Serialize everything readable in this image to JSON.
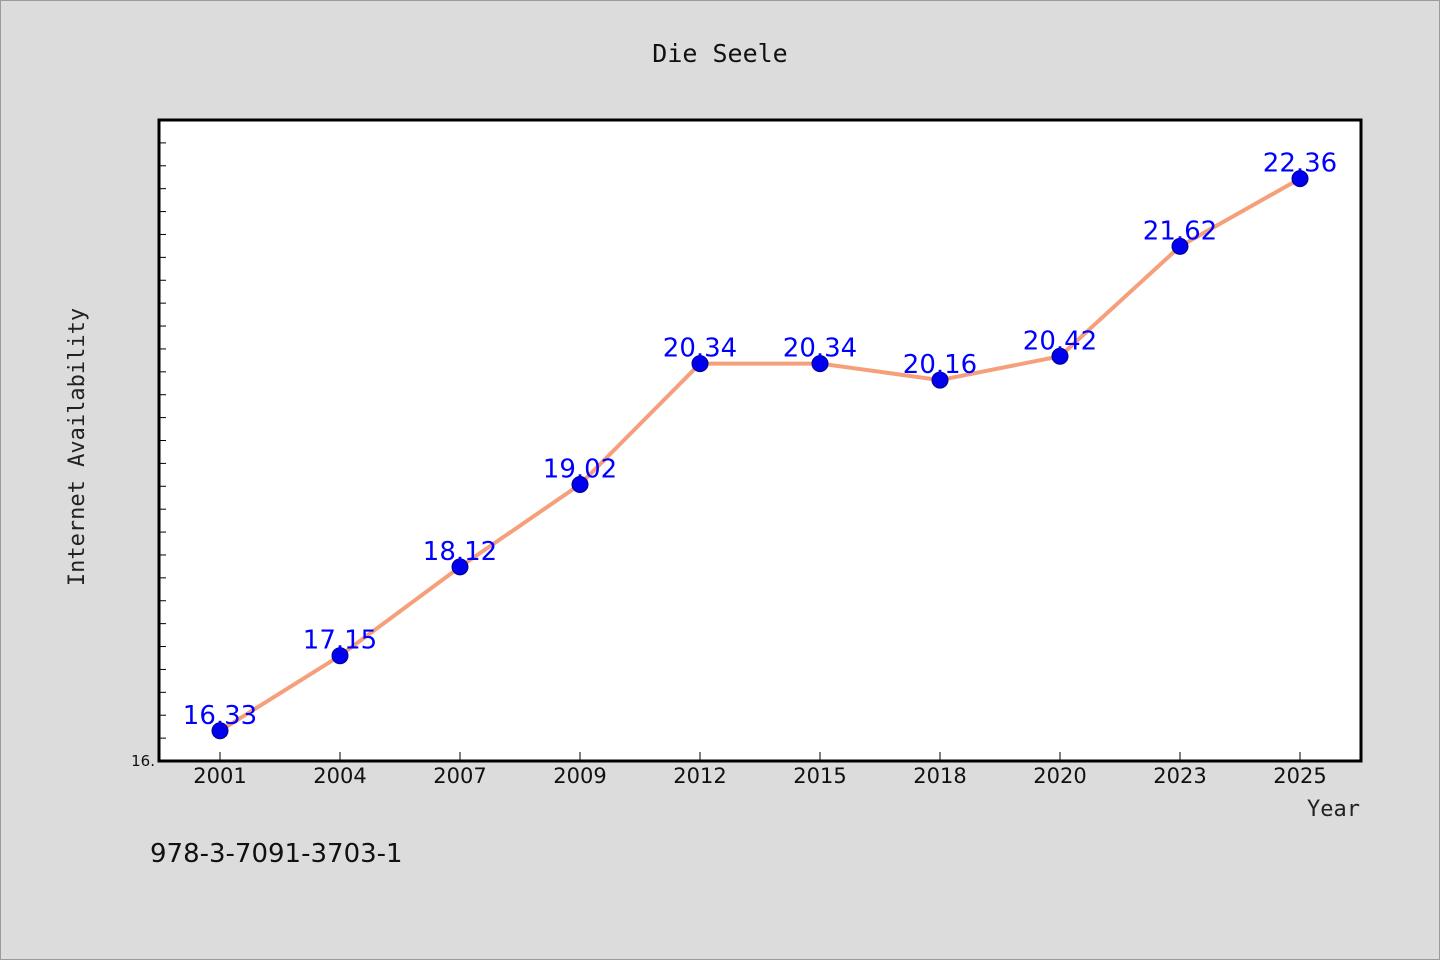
{
  "chart_data": {
    "type": "line",
    "title": "Die Seele",
    "xlabel": "Year",
    "ylabel": "Internet Availability",
    "categories": [
      "2001",
      "2004",
      "2007",
      "2009",
      "2012",
      "2015",
      "2018",
      "2020",
      "2023",
      "2025"
    ],
    "series": [
      {
        "values": [
          16.33,
          17.15,
          18.12,
          19.02,
          20.34,
          20.34,
          20.16,
          20.42,
          21.62,
          22.36
        ]
      }
    ],
    "data_labels": [
      "16.33",
      "17.15",
      "18.12",
      "19.02",
      "20.34",
      "20.34",
      "20.16",
      "20.42",
      "21.62",
      "22.36"
    ],
    "y_tick_labels": [
      "16."
    ],
    "ylim": [
      16.0,
      23.0
    ],
    "grid": false,
    "legend": "none"
  },
  "footer": {
    "isbn": "978-3-7091-3703-1"
  },
  "colors": {
    "background": "#dcdcdc",
    "plot_background": "#ffffff",
    "line": "#f5a07a",
    "marker": "#0000ee",
    "data_label": "#0000ff"
  }
}
